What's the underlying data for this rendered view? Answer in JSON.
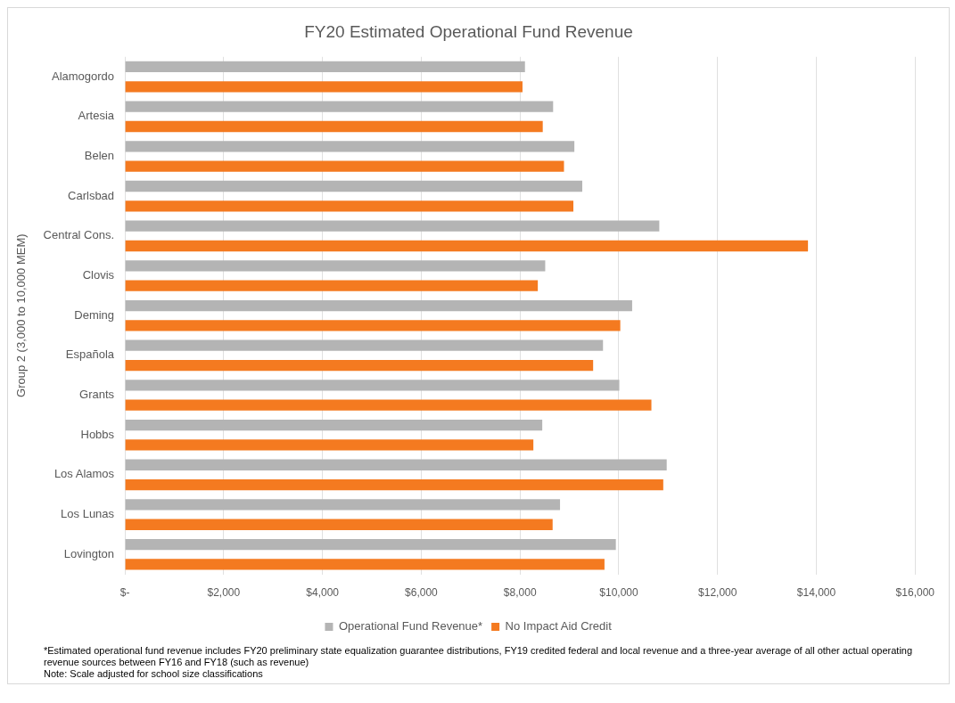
{
  "chart_data": {
    "type": "bar",
    "orientation": "horizontal",
    "title": "FY20 Estimated Operational Fund Revenue",
    "ylabel": "Group 2 (3,000 to 10,000 MEM)",
    "categories": [
      "Alamogordo",
      "Artesia",
      "Belen",
      "Carlsbad",
      "Central Cons.",
      "Clovis",
      "Deming",
      "Española",
      "Grants",
      "Hobbs",
      "Los Alamos",
      "Los Lunas",
      "Lovington"
    ],
    "series": [
      {
        "name": "Operational Fund Revenue*",
        "color": "#b4b4b4",
        "values": [
          8100,
          8670,
          9100,
          9260,
          10820,
          8510,
          10270,
          9680,
          10010,
          8450,
          10970,
          8810,
          9940
        ]
      },
      {
        "name": "No Impact Aid Credit",
        "color": "#f47a20",
        "values": [
          8050,
          8460,
          8890,
          9080,
          13830,
          8360,
          10030,
          9480,
          10660,
          8270,
          10900,
          8660,
          9710
        ]
      }
    ],
    "xlim": [
      0,
      16000
    ],
    "xticks": [
      {
        "value": 0,
        "label": "$-"
      },
      {
        "value": 2000,
        "label": "$2,000"
      },
      {
        "value": 4000,
        "label": "$4,000"
      },
      {
        "value": 6000,
        "label": "$6,000"
      },
      {
        "value": 8000,
        "label": "$8,000"
      },
      {
        "value": 10000,
        "label": "$10,000"
      },
      {
        "value": 12000,
        "label": "$12,000"
      },
      {
        "value": 14000,
        "label": "$14,000"
      },
      {
        "value": 16000,
        "label": "$16,000"
      }
    ],
    "grid": "x",
    "legend": "bottom",
    "annotations": [
      "*Estimated operational fund revenue includes FY20 preliminary state equalization guarantee distributions, FY19 credited federal and local revenue  and a three-year average of all other actual operating revenue sources between FY16 and FY18 (such as revenue)",
      "Note: Scale adjusted for school size classifications"
    ]
  }
}
